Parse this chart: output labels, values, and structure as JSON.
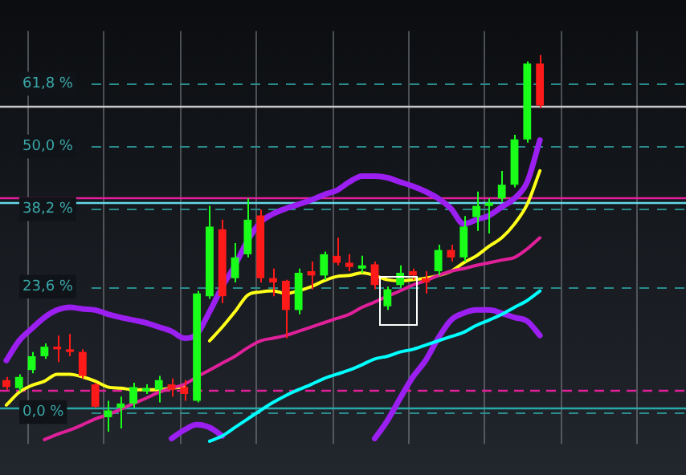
{
  "chart_data": {
    "type": "candlestick",
    "categories": [
      null,
      null,
      null,
      null,
      null,
      null,
      null,
      null,
      null,
      null,
      null,
      null,
      null,
      null,
      null,
      null,
      null,
      null,
      null,
      null,
      null,
      null,
      null,
      null,
      null,
      null,
      null,
      null,
      null,
      null,
      null,
      null,
      null,
      null,
      null,
      null,
      null,
      null,
      null,
      null,
      null,
      null,
      null,
      null,
      null,
      null,
      null,
      null,
      null,
      null,
      null,
      null,
      null,
      null
    ],
    "ohlc": [
      [
        6.0,
        6.6,
        4.2,
        4.7
      ],
      [
        4.5,
        7.1,
        3.9,
        6.6
      ],
      [
        7.9,
        11.3,
        7.3,
        10.5
      ],
      [
        10.5,
        12.9,
        10.0,
        12.3
      ],
      [
        12.3,
        14.4,
        9.4,
        11.8
      ],
      [
        11.8,
        14.7,
        10.5,
        11.3
      ],
      [
        11.3,
        11.8,
        6.3,
        6.8
      ],
      [
        5.2,
        5.5,
        0.8,
        1.0
      ],
      [
        -1.0,
        2.1,
        -3.7,
        0.3
      ],
      [
        0.8,
        2.9,
        -3.1,
        1.6
      ],
      [
        1.6,
        5.5,
        0.8,
        4.7
      ],
      [
        3.9,
        5.2,
        3.4,
        4.5
      ],
      [
        4.2,
        6.8,
        1.8,
        6.0
      ],
      [
        5.2,
        6.3,
        2.9,
        4.2
      ],
      [
        4.7,
        6.0,
        2.1,
        3.4
      ],
      [
        2.1,
        22.8,
        1.8,
        22.3
      ],
      [
        21.8,
        38.8,
        21.3,
        34.9
      ],
      [
        34.4,
        36.2,
        20.5,
        21.8
      ],
      [
        25.2,
        31.8,
        24.4,
        29.1
      ],
      [
        29.7,
        40.2,
        29.1,
        36.2
      ],
      [
        37.0,
        38.1,
        24.4,
        25.2
      ],
      [
        25.2,
        27.0,
        21.8,
        24.4
      ],
      [
        24.7,
        24.9,
        13.9,
        19.2
      ],
      [
        19.2,
        27.0,
        18.4,
        26.2
      ],
      [
        26.5,
        28.3,
        23.1,
        25.7
      ],
      [
        25.7,
        30.2,
        24.9,
        29.7
      ],
      [
        29.4,
        32.8,
        27.6,
        28.1
      ],
      [
        28.1,
        29.7,
        26.5,
        27.3
      ],
      [
        27.0,
        29.4,
        26.2,
        27.6
      ],
      [
        27.8,
        28.3,
        23.1,
        23.9
      ],
      [
        19.9,
        23.6,
        19.2,
        23.1
      ],
      [
        23.9,
        27.6,
        23.4,
        26.2
      ],
      [
        26.5,
        27.0,
        24.9,
        25.7
      ],
      [
        25.2,
        26.5,
        22.3,
        24.4
      ],
      [
        26.5,
        31.5,
        25.7,
        30.5
      ],
      [
        30.5,
        31.5,
        28.3,
        29.1
      ],
      [
        29.1,
        36.9,
        28.3,
        34.9
      ],
      [
        36.7,
        41.5,
        34.1,
        38.8
      ],
      [
        38.8,
        40.2,
        33.6,
        39.4
      ],
      [
        40.2,
        45.4,
        39.6,
        42.8
      ],
      [
        42.8,
        52.2,
        42.3,
        51.3
      ],
      [
        51.3,
        66.0,
        50.7,
        65.6
      ],
      [
        65.6,
        67.2,
        57.2,
        57.7
      ],
      null,
      null,
      null,
      null,
      null,
      null,
      null,
      null,
      null,
      null,
      null
    ],
    "series": [
      {
        "type": "line",
        "color": "#00ffff",
        "values": [
          null,
          null,
          null,
          null,
          null,
          null,
          null,
          null,
          null,
          null,
          null,
          null,
          null,
          null,
          null,
          null,
          -5.5,
          -4.5,
          -2.9,
          -1.3,
          0.3,
          1.8,
          3.1,
          4.2,
          5.2,
          6.3,
          7.1,
          7.9,
          8.9,
          10.0,
          10.5,
          11.3,
          11.8,
          12.6,
          13.4,
          14.2,
          15.0,
          16.3,
          17.3,
          18.4,
          19.7,
          21.0,
          22.8,
          null,
          null,
          null,
          null,
          null,
          null,
          null,
          null,
          null,
          null,
          null
        ]
      },
      {
        "type": "line",
        "color": "#e0209a",
        "values": [
          null,
          null,
          null,
          -5.2,
          -4.2,
          -3.4,
          -2.4,
          -1.3,
          -0.5,
          0.5,
          1.6,
          2.6,
          3.7,
          4.5,
          5.2,
          6.6,
          7.9,
          9.2,
          10.5,
          12.1,
          13.4,
          13.9,
          14.4,
          15.2,
          16.0,
          16.8,
          17.6,
          18.4,
          19.7,
          20.7,
          21.8,
          22.8,
          23.9,
          24.7,
          25.7,
          26.5,
          27.0,
          27.6,
          28.1,
          28.6,
          29.1,
          30.7,
          32.8,
          null,
          null,
          null,
          null,
          null,
          null,
          null,
          null,
          null,
          null,
          null
        ]
      },
      {
        "type": "line",
        "color": "#9b1ff0",
        "values": [
          9.7,
          13.4,
          15.7,
          17.8,
          19.2,
          19.7,
          19.4,
          19.2,
          18.4,
          17.8,
          17.3,
          16.8,
          16.0,
          15.2,
          13.9,
          14.7,
          18.9,
          23.6,
          27.6,
          32.3,
          35.7,
          37.3,
          38.3,
          39.1,
          39.9,
          40.9,
          41.7,
          43.3,
          44.4,
          44.4,
          44.1,
          43.3,
          42.5,
          41.5,
          40.2,
          38.3,
          35.4,
          36.2,
          37.0,
          38.6,
          40.2,
          43.3,
          51.2,
          null,
          null,
          null,
          null,
          null,
          null,
          null,
          null,
          null,
          null,
          null
        ]
      },
      {
        "type": "line",
        "color": "#9b1ff0",
        "values": [
          null,
          null,
          null,
          null,
          null,
          null,
          null,
          null,
          null,
          null,
          null,
          null,
          null,
          -5.0,
          -3.4,
          -2.4,
          -2.9,
          -4.5,
          null,
          null,
          null,
          null,
          null,
          null,
          null,
          null,
          null,
          null,
          null,
          -5.0,
          -1.6,
          2.6,
          6.6,
          9.7,
          13.9,
          17.3,
          18.6,
          19.2,
          19.2,
          18.6,
          17.8,
          17.1,
          14.4,
          null,
          null,
          null,
          null,
          null,
          null,
          null,
          null,
          null,
          null,
          null
        ]
      },
      {
        "type": "line",
        "color": "#ffff1a",
        "values": [
          1.3,
          3.7,
          5.0,
          5.8,
          7.1,
          7.1,
          6.6,
          5.8,
          4.7,
          4.5,
          4.2,
          4.2,
          4.2,
          4.5,
          4.7,
          null,
          13.4,
          16.0,
          18.9,
          22.0,
          22.6,
          22.8,
          22.3,
          22.8,
          23.6,
          24.7,
          25.5,
          25.7,
          26.2,
          25.7,
          24.9,
          24.7,
          24.9,
          25.2,
          25.7,
          26.5,
          28.1,
          29.4,
          31.2,
          32.8,
          35.4,
          39.1,
          45.4,
          null,
          null,
          null,
          null,
          null,
          null,
          null,
          null,
          null,
          null,
          null
        ]
      }
    ],
    "ylim": [
      -6,
      71.7
    ],
    "yticks": [
      {
        "value": 0,
        "label": "0,0 %"
      },
      {
        "value": 23.6,
        "label": "23,6 %"
      },
      {
        "value": 38.2,
        "label": "38,2 %"
      },
      {
        "value": 50,
        "label": "50,0 %"
      },
      {
        "value": 61.8,
        "label": "61,8 %"
      }
    ],
    "ref_lines": [
      {
        "axis": "y",
        "value": 57.7,
        "color": "#c8c8c8",
        "line_style": "solid"
      },
      {
        "axis": "y",
        "value": 40.4,
        "color": "#e0209a",
        "line_style": "solid"
      },
      {
        "axis": "y",
        "value": 39.6,
        "color": "#66d9e8",
        "line_style": "solid"
      },
      {
        "axis": "y",
        "value": 4.2,
        "color": "#e0209a",
        "line_style": "dashed"
      },
      {
        "axis": "y",
        "value": 0.8,
        "color": "#2aa8a8",
        "line_style": "solid"
      }
    ],
    "grid": true,
    "legend": false,
    "tick_labels": "y",
    "marker": "none"
  }
}
